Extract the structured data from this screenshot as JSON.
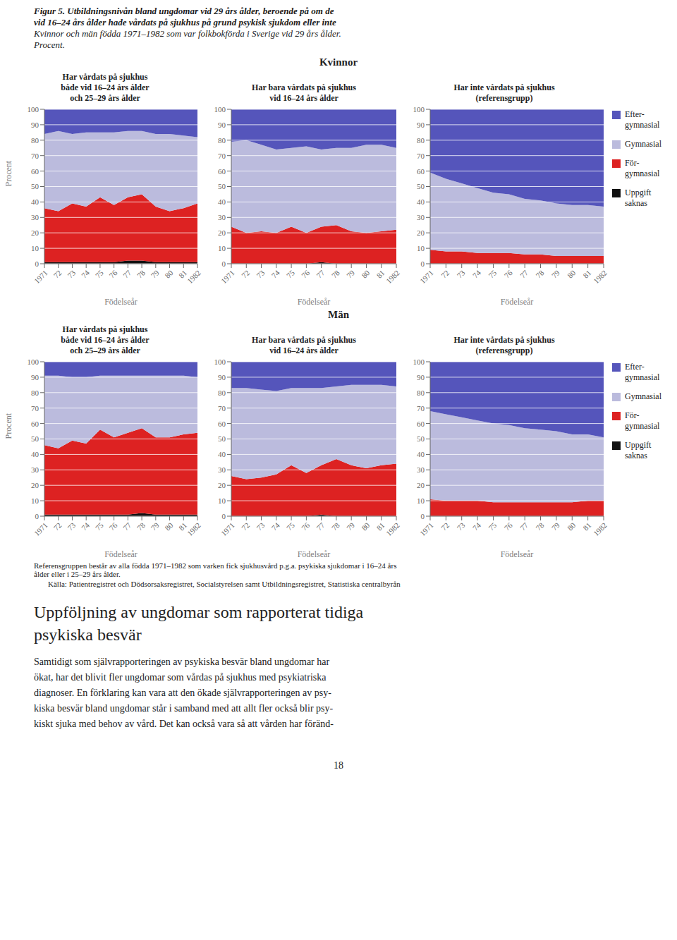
{
  "title": "Figur 5. Utbildningsnivån bland ungdomar vid 29 års ålder, beroende på om de\nvid 16–24 års ålder hade vårdats på sjukhus på grund psykisk sjukdom eller inte",
  "subtitle": "Kvinnor och män födda 1971–1982 som var folkbokförda i Sverige vid 29 års ålder.\nProcent.",
  "annotations": [
    "Kvinnor",
    "Män",
    "Referensgruppen består av alla födda 1971–1982 som varken fick sjukhusvård p.g.a. psykiska sjukdomar i 16–24 års\nålder eller i 25–29 års ålder.",
    "Källa: Patientregistret och Dödsorsaksregistret, Socialstyrelsen samt Utbildningsregistret, Statistiska centralbyrån",
    "Uppföljning av ungdomar som rapporterat tidiga\npsykiska besvär",
    "Samtidigt som självrapporteringen av psykiska besvär bland ungdomar har\nökat, har det blivit fler ungdomar som vårdas på sjukhus med psykiatriska\ndiagnoser. En förklaring kan vara att den ökade självrapporteringen av psy-\nkiska besvär bland ungdomar står i samband med att allt fler också blir psy-\nkiskt sjuka med behov av vård. Det kan också vara så att vården har föränd-",
    "18"
  ],
  "chart_data": [
    {
      "type": "area",
      "stacked": true,
      "title": "Har vårdats på sjukhus\nbåde vid 16–24 års ålder\noch 25–29 års ålder",
      "xlabel": "Födelseår",
      "ylabel": "Procent",
      "categories": [
        "1971",
        "72",
        "73",
        "74",
        "75",
        "76",
        "77",
        "78",
        "79",
        "80",
        "81",
        "1982"
      ],
      "ylim": [
        0,
        100
      ],
      "yticks": [
        0,
        10,
        20,
        30,
        40,
        50,
        60,
        70,
        80,
        90,
        100
      ],
      "grid": true,
      "series": [
        {
          "name": "Uppgift\nsaknas",
          "color": "#111111",
          "values": [
            1,
            1,
            1,
            1,
            1,
            1,
            2,
            2,
            1,
            1,
            1,
            1
          ]
        },
        {
          "name": "För-\ngymnasial",
          "color": "#DD2222",
          "values": [
            35,
            33,
            38,
            36,
            42,
            37,
            41,
            43,
            36,
            33,
            35,
            38
          ]
        },
        {
          "name": "Gymnasial",
          "color": "#BBBBDD",
          "values": [
            48,
            52,
            45,
            48,
            42,
            47,
            43,
            41,
            47,
            50,
            47,
            43
          ]
        },
        {
          "name": "Efter-\ngymnasial",
          "color": "#5555BB",
          "values": [
            16,
            14,
            16,
            15,
            15,
            15,
            14,
            14,
            16,
            16,
            17,
            18
          ]
        }
      ]
    },
    {
      "type": "area",
      "stacked": true,
      "title": "Har bara vårdats på sjukhus\nvid 16–24 års ålder",
      "xlabel": "Födelseår",
      "categories": [
        "1971",
        "72",
        "73",
        "74",
        "75",
        "76",
        "77",
        "78",
        "79",
        "80",
        "81",
        "1982"
      ],
      "ylim": [
        0,
        100
      ],
      "yticks": [
        0,
        10,
        20,
        30,
        40,
        50,
        60,
        70,
        80,
        90,
        100
      ],
      "grid": true,
      "series": [
        {
          "name": "Uppgift\nsaknas",
          "color": "#111111",
          "values": [
            0,
            0,
            0,
            0,
            0,
            0,
            1,
            0,
            0,
            0,
            0,
            0
          ]
        },
        {
          "name": "För-\ngymnasial",
          "color": "#DD2222",
          "values": [
            24,
            20,
            21,
            20,
            24,
            20,
            23,
            25,
            21,
            20,
            21,
            22
          ]
        },
        {
          "name": "Gymnasial",
          "color": "#BBBBDD",
          "values": [
            55,
            60,
            56,
            54,
            51,
            56,
            50,
            50,
            54,
            57,
            56,
            53
          ]
        },
        {
          "name": "Efter-\ngymnasial",
          "color": "#5555BB",
          "values": [
            21,
            20,
            23,
            26,
            25,
            24,
            26,
            25,
            25,
            23,
            23,
            25
          ]
        }
      ]
    },
    {
      "type": "area",
      "stacked": true,
      "title": "Har inte vårdats på sjukhus\n(referensgrupp)",
      "xlabel": "Födelseår",
      "categories": [
        "1971",
        "72",
        "73",
        "74",
        "75",
        "76",
        "77",
        "78",
        "79",
        "80",
        "81",
        "1982"
      ],
      "ylim": [
        0,
        100
      ],
      "yticks": [
        0,
        10,
        20,
        30,
        40,
        50,
        60,
        70,
        80,
        90,
        100
      ],
      "grid": true,
      "legend": "right",
      "series": [
        {
          "name": "Uppgift\nsaknas",
          "color": "#111111",
          "values": [
            0,
            0,
            0,
            0,
            0,
            0,
            0,
            0,
            0,
            0,
            0,
            0
          ]
        },
        {
          "name": "För-\ngymnasial",
          "color": "#DD2222",
          "values": [
            9,
            8,
            8,
            7,
            7,
            7,
            6,
            6,
            5,
            5,
            5,
            5
          ]
        },
        {
          "name": "Gymnasial",
          "color": "#BBBBDD",
          "values": [
            50,
            47,
            44,
            42,
            39,
            38,
            36,
            35,
            34,
            33,
            33,
            32
          ]
        },
        {
          "name": "Efter-\ngymnasial",
          "color": "#5555BB",
          "values": [
            41,
            45,
            48,
            51,
            54,
            55,
            58,
            59,
            61,
            62,
            62,
            63
          ]
        }
      ]
    },
    {
      "type": "area",
      "stacked": true,
      "title": "Har vårdats på sjukhus\nbåde vid 16–24 års ålder\noch 25–29 års ålder",
      "xlabel": "Födelseår",
      "ylabel": "Procent",
      "categories": [
        "1971",
        "72",
        "73",
        "74",
        "75",
        "76",
        "77",
        "78",
        "79",
        "80",
        "81",
        "1982"
      ],
      "ylim": [
        0,
        100
      ],
      "yticks": [
        0,
        10,
        20,
        30,
        40,
        50,
        60,
        70,
        80,
        90,
        100
      ],
      "grid": true,
      "series": [
        {
          "name": "Uppgift\nsaknas",
          "color": "#111111",
          "values": [
            1,
            1,
            1,
            1,
            1,
            1,
            1,
            2,
            1,
            1,
            1,
            1
          ]
        },
        {
          "name": "För-\ngymnasial",
          "color": "#DD2222",
          "values": [
            45,
            43,
            48,
            46,
            55,
            50,
            53,
            55,
            50,
            50,
            52,
            53
          ]
        },
        {
          "name": "Gymnasial",
          "color": "#BBBBDD",
          "values": [
            45,
            47,
            41,
            43,
            35,
            40,
            37,
            34,
            40,
            40,
            38,
            36
          ]
        },
        {
          "name": "Efter-\ngymnasial",
          "color": "#5555BB",
          "values": [
            9,
            9,
            10,
            10,
            9,
            9,
            9,
            9,
            9,
            9,
            9,
            10
          ]
        }
      ]
    },
    {
      "type": "area",
      "stacked": true,
      "title": "Har bara vårdats på sjukhus\nvid 16–24 års ålder",
      "xlabel": "Födelseår",
      "categories": [
        "1971",
        "72",
        "73",
        "74",
        "75",
        "76",
        "77",
        "78",
        "79",
        "80",
        "81",
        "1982"
      ],
      "ylim": [
        0,
        100
      ],
      "yticks": [
        0,
        10,
        20,
        30,
        40,
        50,
        60,
        70,
        80,
        90,
        100
      ],
      "grid": true,
      "series": [
        {
          "name": "Uppgift\nsaknas",
          "color": "#111111",
          "values": [
            0,
            0,
            0,
            0,
            0,
            0,
            1,
            0,
            0,
            0,
            0,
            0
          ]
        },
        {
          "name": "För-\ngymnasial",
          "color": "#DD2222",
          "values": [
            26,
            24,
            25,
            27,
            33,
            28,
            32,
            37,
            33,
            31,
            33,
            34
          ]
        },
        {
          "name": "Gymnasial",
          "color": "#BBBBDD",
          "values": [
            57,
            59,
            57,
            54,
            50,
            55,
            50,
            47,
            52,
            54,
            52,
            50
          ]
        },
        {
          "name": "Efter-\ngymnasial",
          "color": "#5555BB",
          "values": [
            17,
            17,
            18,
            19,
            17,
            17,
            17,
            16,
            15,
            15,
            15,
            16
          ]
        }
      ]
    },
    {
      "type": "area",
      "stacked": true,
      "title": "Har inte vårdats på sjukhus\n(referensgrupp)",
      "xlabel": "Födelseår",
      "categories": [
        "1971",
        "72",
        "73",
        "74",
        "75",
        "76",
        "77",
        "78",
        "79",
        "80",
        "81",
        "1982"
      ],
      "ylim": [
        0,
        100
      ],
      "yticks": [
        0,
        10,
        20,
        30,
        40,
        50,
        60,
        70,
        80,
        90,
        100
      ],
      "grid": true,
      "legend": "right",
      "series": [
        {
          "name": "Uppgift\nsaknas",
          "color": "#111111",
          "values": [
            0,
            0,
            0,
            0,
            0,
            0,
            0,
            0,
            0,
            0,
            0,
            0
          ]
        },
        {
          "name": "För-\ngymnasial",
          "color": "#DD2222",
          "values": [
            11,
            10,
            10,
            10,
            9,
            9,
            9,
            9,
            9,
            9,
            10,
            10
          ]
        },
        {
          "name": "Gymnasial",
          "color": "#BBBBDD",
          "values": [
            57,
            56,
            54,
            52,
            51,
            50,
            48,
            47,
            46,
            44,
            43,
            41
          ]
        },
        {
          "name": "Efter-\ngymnasial",
          "color": "#5555BB",
          "values": [
            32,
            34,
            36,
            38,
            40,
            41,
            43,
            44,
            45,
            47,
            47,
            49
          ]
        }
      ]
    }
  ]
}
